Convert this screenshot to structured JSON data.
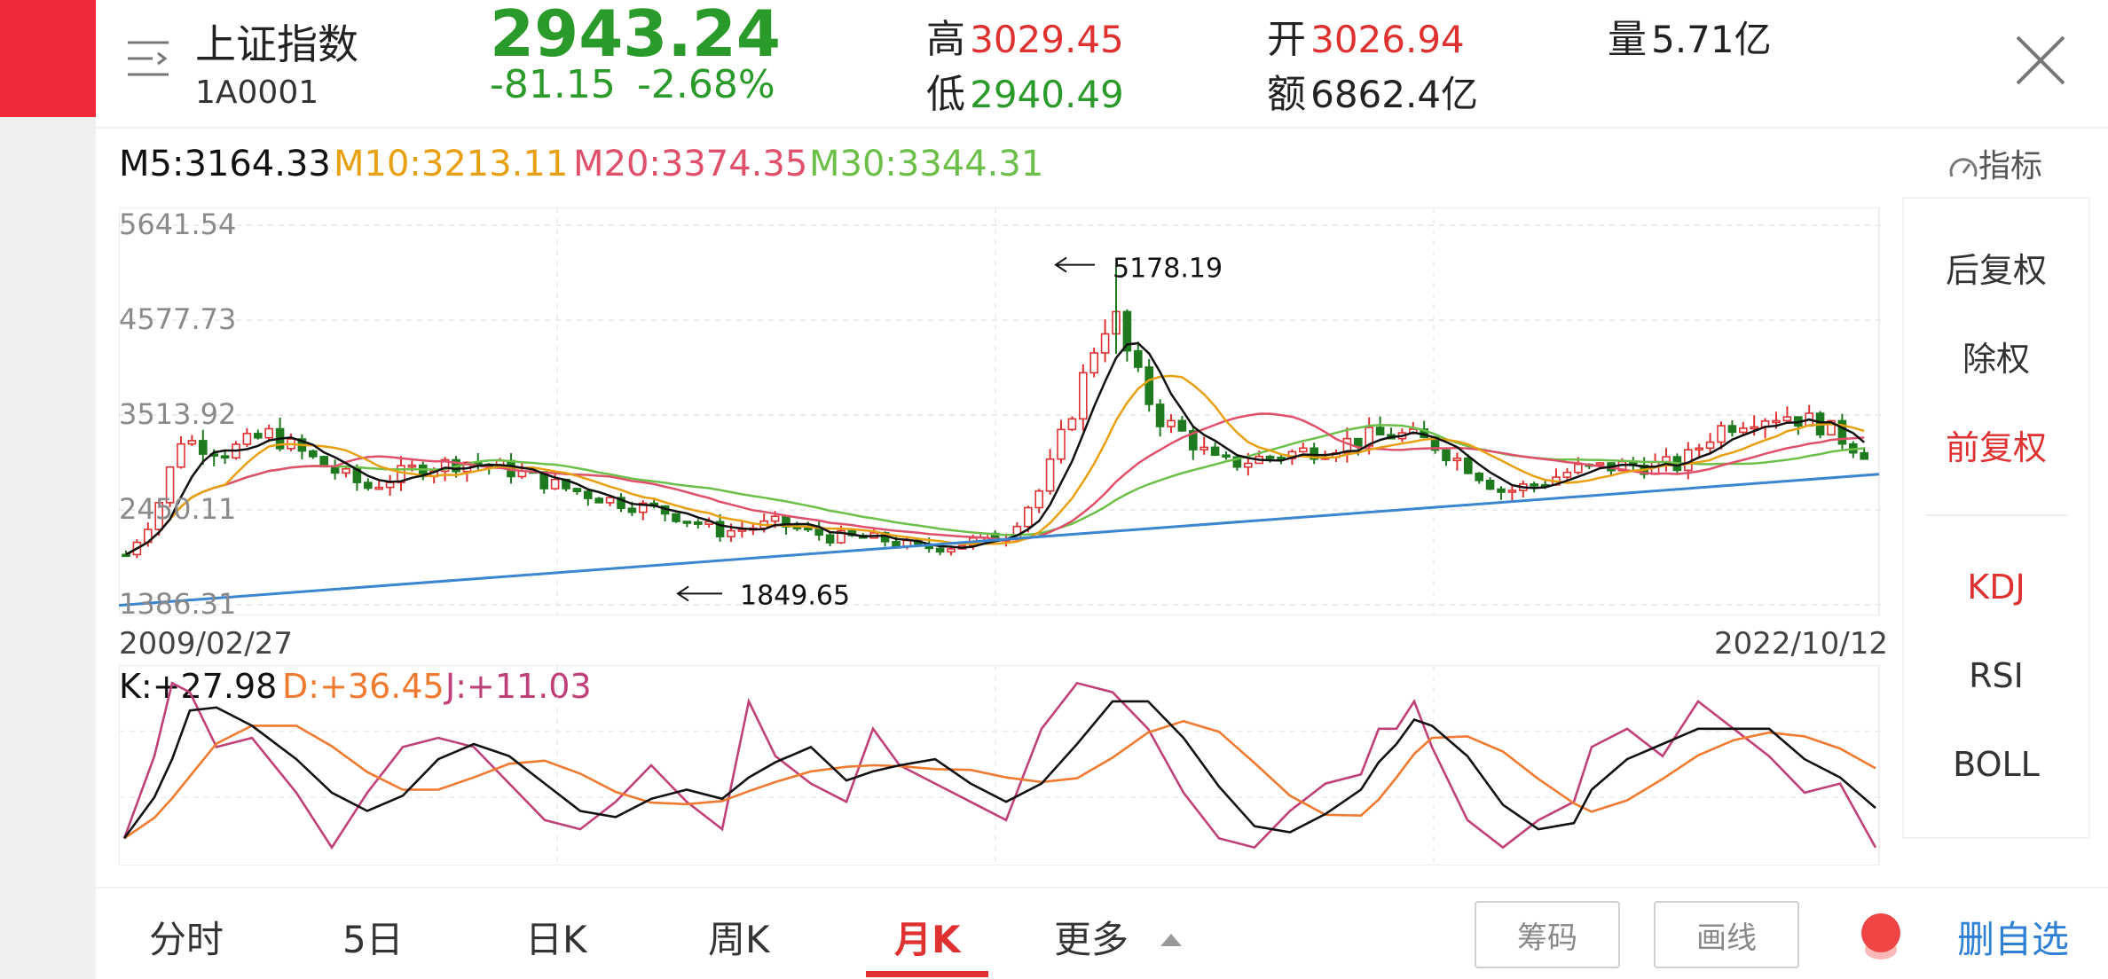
{
  "header": {
    "name": "上证指数",
    "code": "1A0001",
    "price": "2943.24",
    "change": "-81.15",
    "change_pct": "-2.68%",
    "high_label": "高",
    "high": "3029.45",
    "low_label": "低",
    "low": "2940.49",
    "open_label": "开",
    "open": "3026.94",
    "amount_label": "额",
    "amount": "6862.4亿",
    "volume_label": "量",
    "volume": "5.71亿"
  },
  "ma_legend": {
    "m5": "M5:3164.33",
    "m10": "M10:3213.11",
    "m20": "M20:3374.35",
    "m30": "M30:3344.31"
  },
  "indicator_button": "指标",
  "chart": {
    "y_ticks": [
      "5641.54",
      "4577.73",
      "3513.92",
      "2450.11",
      "1386.31"
    ],
    "high_annotation": "5178.19",
    "low_annotation": "1849.65",
    "start_date": "2009/02/27",
    "end_date": "2022/10/12"
  },
  "kdj_legend": {
    "k": "K:+27.98",
    "d": "D:+36.45",
    "j": "J:+11.03"
  },
  "side_panel": {
    "items": [
      "后复权",
      "除权",
      "前复权"
    ],
    "indicators": [
      "KDJ",
      "RSI",
      "BOLL"
    ]
  },
  "tabs": [
    "分时",
    "5日",
    "日K",
    "周K",
    "月K",
    "更多"
  ],
  "buttons": {
    "chips": "筹码",
    "draw": "画线",
    "delete_fav": "删自选"
  },
  "colors": {
    "up": "#e03131",
    "down": "#2a9a2a",
    "ma5": "#111111",
    "ma10": "#e8a010",
    "ma20": "#e0506a",
    "ma30": "#6cc04a",
    "trendline": "#3a86d0",
    "kdj_k": "#111111",
    "kdj_d": "#f07a30",
    "kdj_j": "#c0407a"
  }
}
